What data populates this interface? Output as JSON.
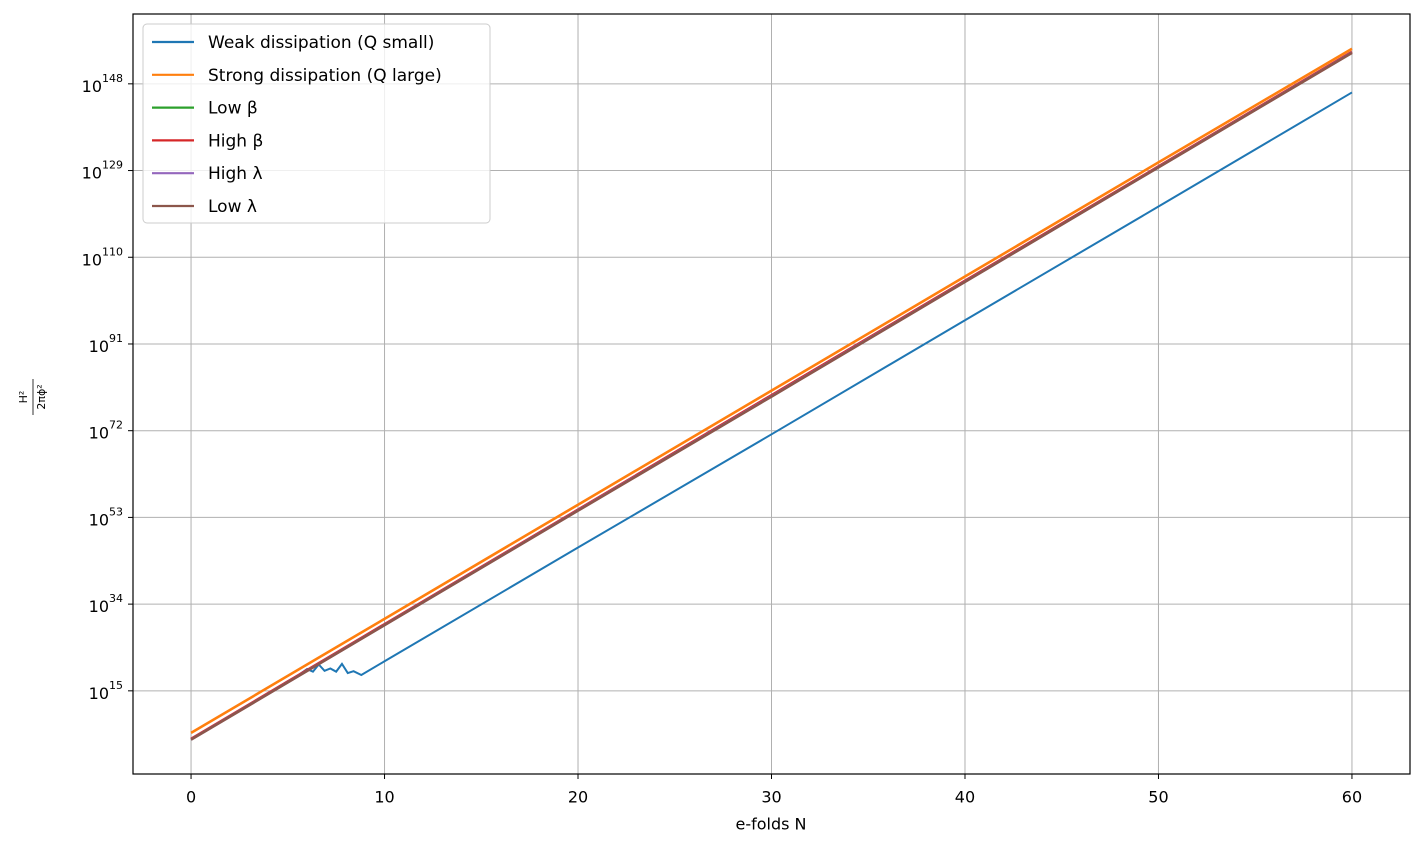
{
  "chart_data": {
    "type": "line",
    "xlabel": "e-folds N",
    "ylabel": {
      "numerator": "H²",
      "denominator": "2πϕ²"
    },
    "xlim": [
      -3,
      63
    ],
    "ylim": [
      0.0006,
      2e+163
    ],
    "yscale": "log",
    "xticks": [
      0,
      10,
      20,
      30,
      40,
      50,
      60
    ],
    "yticks": [
      {
        "value": 1000000000000000.0,
        "label": "10^15"
      },
      {
        "value": 1e+34,
        "label": "10^34"
      },
      {
        "value": 1e+53,
        "label": "10^53"
      },
      {
        "value": 1e+72,
        "label": "10^72"
      },
      {
        "value": 1e+91,
        "label": "10^91"
      },
      {
        "value": 1e+110,
        "label": "10^110"
      },
      {
        "value": 1e+129,
        "label": "10^129"
      },
      {
        "value": 1e+148,
        "label": "10^148"
      }
    ],
    "grid": true,
    "legend": "upper left",
    "series": [
      {
        "name": "Weak dissipation (Q small)",
        "color": "#1f77b4",
        "x": [
          0,
          1,
          2,
          3,
          4,
          5,
          5.5,
          6,
          6.3,
          6.6,
          6.9,
          7.2,
          7.5,
          7.8,
          8.1,
          8.4,
          8.8,
          10,
          20,
          30,
          40,
          50,
          60
        ],
        "values": [
          20000.0,
          8000000.0,
          2500000000.0,
          1000000000000.0,
          300000000000000.0,
          1.3e+17,
          2e+18,
          6e+19,
          1.6e+19,
          6e+20,
          2.5e+19,
          8e+19,
          1.6e+19,
          8e+20,
          8e+18,
          2e+19,
          3e+18,
          3e+21,
          2.5e+46,
          1.6e+71,
          1.6e+96,
          1.3e+121,
          1.3e+146
        ]
      },
      {
        "name": "Strong dissipation (Q large)",
        "color": "#ff7f0e",
        "x": [
          0,
          10,
          20,
          30,
          40,
          50,
          60
        ],
        "values": [
          600000.0,
          6e+30,
          6e+55,
          6e+80,
          6e+105,
          6e+130,
          5e+155
        ]
      },
      {
        "name": "Low β",
        "color": "#2ca02c",
        "x": [
          0,
          10,
          20,
          30,
          40,
          50,
          60
        ],
        "values": [
          25000.0,
          3e+29,
          4e+54,
          4e+79,
          5e+104,
          6e+129,
          8e+154
        ]
      },
      {
        "name": "High β",
        "color": "#d62728",
        "x": [
          0,
          10,
          20,
          30,
          40,
          50,
          60
        ],
        "values": [
          30000.0,
          4e+29,
          5e+54,
          6e+79,
          7e+104,
          8e+129,
          1e+155
        ]
      },
      {
        "name": "High λ",
        "color": "#9467bd",
        "x": [
          0,
          10,
          20,
          30,
          40,
          50,
          60
        ],
        "values": [
          22000.0,
          2.7e+29,
          3.5e+54,
          3.5e+79,
          4.5e+104,
          5.5e+129,
          7e+154
        ]
      },
      {
        "name": "Low λ",
        "color": "#8c564b",
        "x": [
          0,
          10,
          20,
          30,
          40,
          50,
          60
        ],
        "values": [
          20000.0,
          2.5e+29,
          3e+54,
          3e+79,
          4e+104,
          5e+129,
          6e+154
        ]
      }
    ]
  }
}
